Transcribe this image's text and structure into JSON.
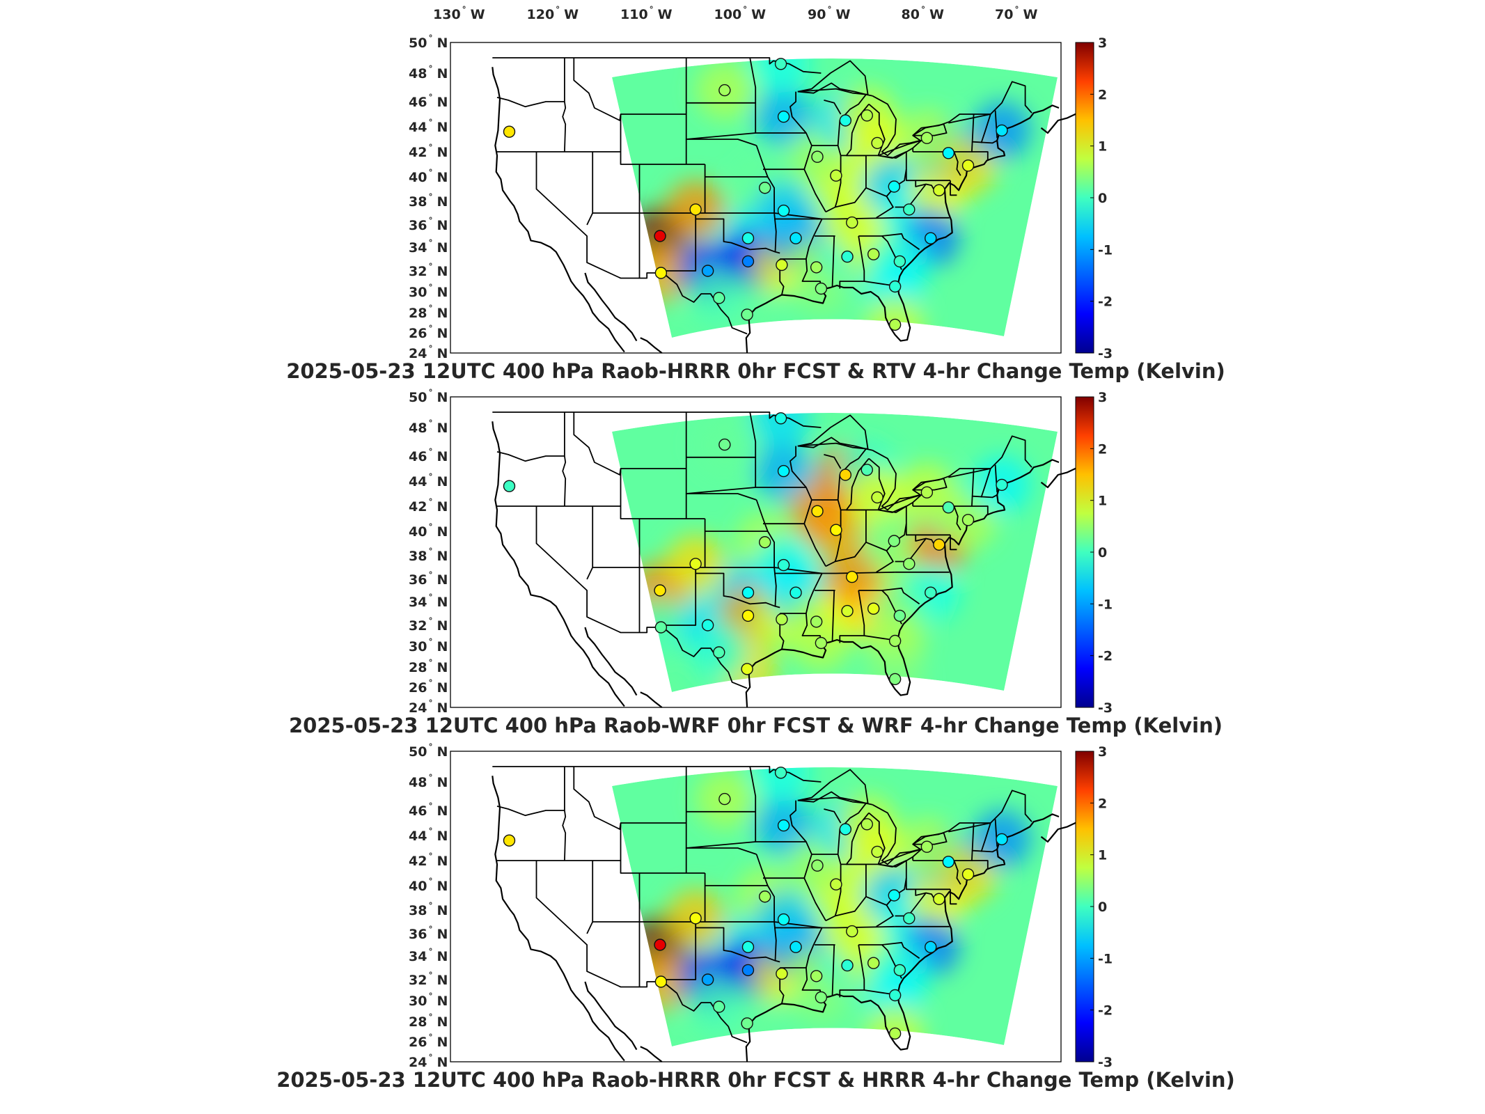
{
  "longitude_labels": [
    "130",
    "120",
    "110",
    "100",
    "90",
    "80",
    "70"
  ],
  "longitude_suffix": "W",
  "latitude_labels": [
    "50",
    "48",
    "46",
    "44",
    "42",
    "40",
    "38",
    "36",
    "34",
    "32",
    "30",
    "28",
    "26",
    "24"
  ],
  "latitude_suffix": "N",
  "degree_symbol": "°",
  "colorbar": {
    "ticks": [
      "3",
      "2",
      "1",
      "0",
      "-1",
      "-2",
      "-3"
    ],
    "colors": [
      "#00008f",
      "#0000ff",
      "#0080ff",
      "#00ffff",
      "#80ff80",
      "#ffff00",
      "#ff8000",
      "#ff0000",
      "#800000"
    ]
  },
  "panels": [
    {
      "title": "2025-05-23 12UTC 400 hPa Raob-HRRR 0hr FCST & RTV 4-hr Change Temp (Kelvin)",
      "stations": [
        {
          "lon": -122.9,
          "lat": 43.6,
          "v": 0.9
        },
        {
          "lon": -106.8,
          "lat": 35.0,
          "v": 2.4
        },
        {
          "lon": -106.7,
          "lat": 31.8,
          "v": 0.8
        },
        {
          "lon": -101.7,
          "lat": 32.0,
          "v": -1.3
        },
        {
          "lon": -103.0,
          "lat": 37.3,
          "v": 0.9
        },
        {
          "lon": -99.9,
          "lat": 46.8,
          "v": 0.2
        },
        {
          "lon": -97.4,
          "lat": 34.8,
          "v": -0.6
        },
        {
          "lon": -97.4,
          "lat": 32.8,
          "v": -1.5
        },
        {
          "lon": -97.5,
          "lat": 27.8,
          "v": -0.1
        },
        {
          "lon": -100.5,
          "lat": 29.4,
          "v": -0.2
        },
        {
          "lon": -95.6,
          "lat": 39.1,
          "v": -0.1
        },
        {
          "lon": -93.6,
          "lat": 44.8,
          "v": -0.8
        },
        {
          "lon": -93.9,
          "lat": 48.6,
          "v": -0.4
        },
        {
          "lon": -93.8,
          "lat": 32.5,
          "v": 0.5
        },
        {
          "lon": -92.3,
          "lat": 34.8,
          "v": -0.9
        },
        {
          "lon": -93.6,
          "lat": 37.2,
          "v": -0.7
        },
        {
          "lon": -90.1,
          "lat": 32.3,
          "v": 0.2
        },
        {
          "lon": -86.8,
          "lat": 33.2,
          "v": -0.5
        },
        {
          "lon": -84.0,
          "lat": 33.4,
          "v": 0.3
        },
        {
          "lon": -86.3,
          "lat": 36.2,
          "v": 0.4
        },
        {
          "lon": -88.0,
          "lat": 40.1,
          "v": 0.4
        },
        {
          "lon": -90.0,
          "lat": 41.6,
          "v": 0.1
        },
        {
          "lon": -87.0,
          "lat": 44.5,
          "v": -0.6
        },
        {
          "lon": -84.7,
          "lat": 44.9,
          "v": 0.3
        },
        {
          "lon": -83.6,
          "lat": 42.7,
          "v": 0.4
        },
        {
          "lon": -81.8,
          "lat": 39.2,
          "v": -0.7
        },
        {
          "lon": -80.2,
          "lat": 37.3,
          "v": -0.4
        },
        {
          "lon": -77.0,
          "lat": 38.9,
          "v": 0.5
        },
        {
          "lon": -77.9,
          "lat": 34.8,
          "v": -1.0
        },
        {
          "lon": -81.2,
          "lat": 32.8,
          "v": -0.4
        },
        {
          "lon": -81.7,
          "lat": 30.5,
          "v": -0.5
        },
        {
          "lon": -81.7,
          "lat": 26.8,
          "v": 0.3
        },
        {
          "lon": -76.0,
          "lat": 41.9,
          "v": -0.8
        },
        {
          "lon": -73.9,
          "lat": 40.9,
          "v": 0.6
        },
        {
          "lon": -70.3,
          "lat": 43.7,
          "v": -0.9
        },
        {
          "lon": -78.3,
          "lat": 43.1,
          "v": 0.2
        },
        {
          "lon": -89.6,
          "lat": 30.3,
          "v": 0.0
        }
      ]
    },
    {
      "title": "2025-05-23 12UTC 400 hPa Raob-WRF 0hr FCST & WRF 4-hr Change Temp (Kelvin)",
      "stations": [
        {
          "lon": -122.9,
          "lat": 43.6,
          "v": -0.4
        },
        {
          "lon": -106.8,
          "lat": 35.0,
          "v": 0.9
        },
        {
          "lon": -106.7,
          "lat": 31.8,
          "v": -0.2
        },
        {
          "lon": -101.7,
          "lat": 32.0,
          "v": -0.6
        },
        {
          "lon": -103.0,
          "lat": 37.3,
          "v": 0.6
        },
        {
          "lon": -99.9,
          "lat": 46.8,
          "v": -0.1
        },
        {
          "lon": -97.4,
          "lat": 34.8,
          "v": -0.7
        },
        {
          "lon": -97.4,
          "lat": 32.8,
          "v": 0.8
        },
        {
          "lon": -97.5,
          "lat": 27.8,
          "v": 0.6
        },
        {
          "lon": -100.5,
          "lat": 29.4,
          "v": -0.3
        },
        {
          "lon": -95.6,
          "lat": 39.1,
          "v": 0.2
        },
        {
          "lon": -93.6,
          "lat": 44.8,
          "v": -0.8
        },
        {
          "lon": -93.9,
          "lat": 48.6,
          "v": -0.6
        },
        {
          "lon": -93.8,
          "lat": 32.5,
          "v": 0.3
        },
        {
          "lon": -92.3,
          "lat": 34.8,
          "v": -0.6
        },
        {
          "lon": -93.6,
          "lat": 37.2,
          "v": -0.5
        },
        {
          "lon": -90.1,
          "lat": 32.3,
          "v": 0.2
        },
        {
          "lon": -86.8,
          "lat": 33.2,
          "v": 0.5
        },
        {
          "lon": -84.0,
          "lat": 33.4,
          "v": 0.6
        },
        {
          "lon": -86.3,
          "lat": 36.2,
          "v": 0.9
        },
        {
          "lon": -88.0,
          "lat": 40.1,
          "v": 0.8
        },
        {
          "lon": -90.0,
          "lat": 41.6,
          "v": 0.9
        },
        {
          "lon": -87.0,
          "lat": 44.5,
          "v": 1.0
        },
        {
          "lon": -84.7,
          "lat": 44.9,
          "v": -0.3
        },
        {
          "lon": -83.6,
          "lat": 42.7,
          "v": 0.4
        },
        {
          "lon": -81.8,
          "lat": 39.2,
          "v": 0.0
        },
        {
          "lon": -80.2,
          "lat": 37.3,
          "v": 0.1
        },
        {
          "lon": -77.0,
          "lat": 38.9,
          "v": 1.0
        },
        {
          "lon": -77.9,
          "lat": 34.8,
          "v": -0.4
        },
        {
          "lon": -81.2,
          "lat": 32.8,
          "v": -0.1
        },
        {
          "lon": -81.7,
          "lat": 30.5,
          "v": 0.2
        },
        {
          "lon": -81.7,
          "lat": 26.8,
          "v": 0.0
        },
        {
          "lon": -76.0,
          "lat": 41.9,
          "v": -0.3
        },
        {
          "lon": -73.9,
          "lat": 40.9,
          "v": 0.2
        },
        {
          "lon": -70.3,
          "lat": 43.7,
          "v": -0.5
        },
        {
          "lon": -78.3,
          "lat": 43.1,
          "v": 0.3
        },
        {
          "lon": -89.6,
          "lat": 30.3,
          "v": 0.2
        }
      ]
    },
    {
      "title": "2025-05-23 12UTC 400 hPa Raob-HRRR 0hr FCST & HRRR 4-hr Change Temp (Kelvin)",
      "stations": [
        {
          "lon": -122.9,
          "lat": 43.6,
          "v": 0.9
        },
        {
          "lon": -106.8,
          "lat": 35.0,
          "v": 2.4
        },
        {
          "lon": -106.7,
          "lat": 31.8,
          "v": 0.8
        },
        {
          "lon": -101.7,
          "lat": 32.0,
          "v": -1.3
        },
        {
          "lon": -103.0,
          "lat": 37.3,
          "v": 0.7
        },
        {
          "lon": -99.9,
          "lat": 46.8,
          "v": 0.2
        },
        {
          "lon": -97.4,
          "lat": 34.8,
          "v": -0.6
        },
        {
          "lon": -97.4,
          "lat": 32.8,
          "v": -1.5
        },
        {
          "lon": -97.5,
          "lat": 27.8,
          "v": -0.1
        },
        {
          "lon": -100.5,
          "lat": 29.4,
          "v": -0.2
        },
        {
          "lon": -95.6,
          "lat": 39.1,
          "v": 0.2
        },
        {
          "lon": -93.6,
          "lat": 44.8,
          "v": -0.8
        },
        {
          "lon": -93.9,
          "lat": 48.6,
          "v": -0.4
        },
        {
          "lon": -93.8,
          "lat": 32.5,
          "v": 0.5
        },
        {
          "lon": -92.3,
          "lat": 34.8,
          "v": -0.9
        },
        {
          "lon": -93.6,
          "lat": 37.2,
          "v": -0.7
        },
        {
          "lon": -90.1,
          "lat": 32.3,
          "v": 0.2
        },
        {
          "lon": -86.8,
          "lat": 33.2,
          "v": -0.5
        },
        {
          "lon": -84.0,
          "lat": 33.4,
          "v": 0.3
        },
        {
          "lon": -86.3,
          "lat": 36.2,
          "v": 0.4
        },
        {
          "lon": -88.0,
          "lat": 40.1,
          "v": 0.4
        },
        {
          "lon": -90.0,
          "lat": 41.6,
          "v": 0.1
        },
        {
          "lon": -87.0,
          "lat": 44.5,
          "v": -0.6
        },
        {
          "lon": -84.7,
          "lat": 44.9,
          "v": 0.3
        },
        {
          "lon": -83.6,
          "lat": 42.7,
          "v": 0.4
        },
        {
          "lon": -81.8,
          "lat": 39.2,
          "v": -0.7
        },
        {
          "lon": -80.2,
          "lat": 37.3,
          "v": -0.4
        },
        {
          "lon": -77.0,
          "lat": 38.9,
          "v": 0.5
        },
        {
          "lon": -77.9,
          "lat": 34.8,
          "v": -1.0
        },
        {
          "lon": -81.2,
          "lat": 32.8,
          "v": -0.4
        },
        {
          "lon": -81.7,
          "lat": 30.5,
          "v": -0.5
        },
        {
          "lon": -81.7,
          "lat": 26.8,
          "v": 0.3
        },
        {
          "lon": -76.0,
          "lat": 41.9,
          "v": -0.8
        },
        {
          "lon": -73.9,
          "lat": 40.9,
          "v": 0.6
        },
        {
          "lon": -70.3,
          "lat": 43.7,
          "v": -0.9
        },
        {
          "lon": -78.3,
          "lat": 43.1,
          "v": 0.2
        },
        {
          "lon": -89.6,
          "lat": 30.3,
          "v": 0.0
        }
      ]
    }
  ]
}
